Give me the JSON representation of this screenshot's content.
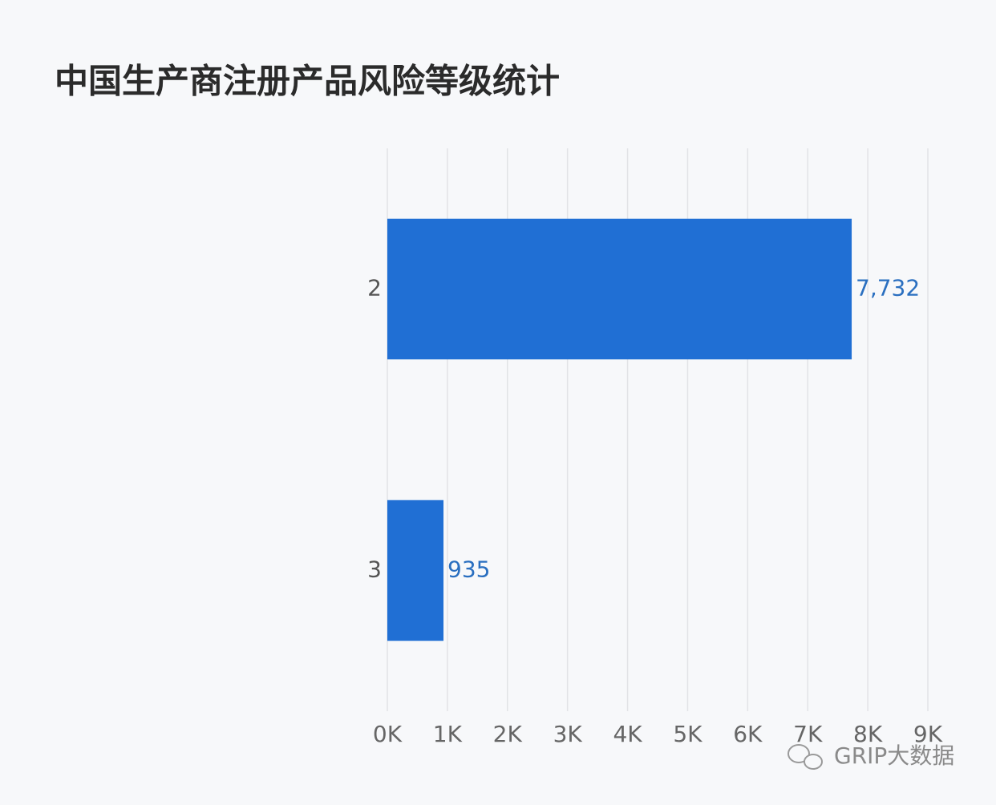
{
  "chart_data": {
    "type": "bar",
    "orientation": "horizontal",
    "title": "中国生产商注册产品风险等级统计",
    "categories": [
      "2",
      "3"
    ],
    "values": [
      7732,
      935
    ],
    "value_labels": [
      "7,732",
      "935"
    ],
    "color": "#206fd4",
    "xlim": [
      0,
      9000
    ],
    "xticks": [
      {
        "value": 0,
        "label": "0K"
      },
      {
        "value": 1000,
        "label": "1K"
      },
      {
        "value": 2000,
        "label": "2K"
      },
      {
        "value": 3000,
        "label": "3K"
      },
      {
        "value": 4000,
        "label": "4K"
      },
      {
        "value": 5000,
        "label": "5K"
      },
      {
        "value": 6000,
        "label": "6K"
      },
      {
        "value": 7000,
        "label": "7K"
      },
      {
        "value": 8000,
        "label": "8K"
      },
      {
        "value": 9000,
        "label": "9K"
      }
    ],
    "grid": true,
    "watermark": "GRIP大数据"
  }
}
